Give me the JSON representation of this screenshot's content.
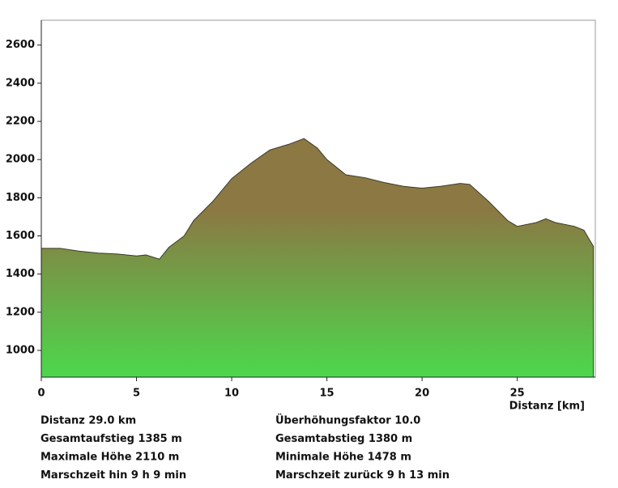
{
  "chart_data": {
    "type": "area",
    "x_label": "Distanz [km]",
    "x": [
      0,
      1,
      2,
      3,
      4,
      5,
      5.5,
      6.2,
      6.7,
      7.5,
      8,
      9,
      10,
      11,
      12,
      13,
      13.8,
      14.5,
      15,
      16,
      17,
      18,
      19,
      20,
      21,
      22,
      22.5,
      23.5,
      24.5,
      25,
      26,
      26.5,
      27,
      28,
      28.5,
      29
    ],
    "values": [
      1535,
      1535,
      1520,
      1510,
      1505,
      1495,
      1500,
      1478,
      1540,
      1600,
      1680,
      1780,
      1900,
      1980,
      2050,
      2080,
      2110,
      2060,
      2000,
      1920,
      1905,
      1880,
      1860,
      1850,
      1860,
      1875,
      1870,
      1780,
      1680,
      1650,
      1670,
      1690,
      1670,
      1650,
      1630,
      1545
    ],
    "xlim": [
      0,
      29.1
    ],
    "xticks": [
      0,
      5,
      10,
      15,
      20,
      25
    ],
    "ylim": [
      860,
      2730
    ],
    "yticks": [
      1000,
      1200,
      1400,
      1600,
      1800,
      2000,
      2200,
      2400,
      2600
    ],
    "gradient": [
      "#8b7843",
      "#4cd84c"
    ],
    "info_left": [
      "Distanz 29.0 km",
      "Gesamtaufstieg  1385 m",
      "Maximale Höhe  2110 m",
      "Marschzeit hin  9 h 9 min"
    ],
    "info_right": [
      "Überhöhungsfaktor 10.0",
      "Gesamtabstieg  1380 m",
      "Minimale Höhe  1478 m",
      "Marschzeit zurück  9 h 13 min"
    ]
  }
}
